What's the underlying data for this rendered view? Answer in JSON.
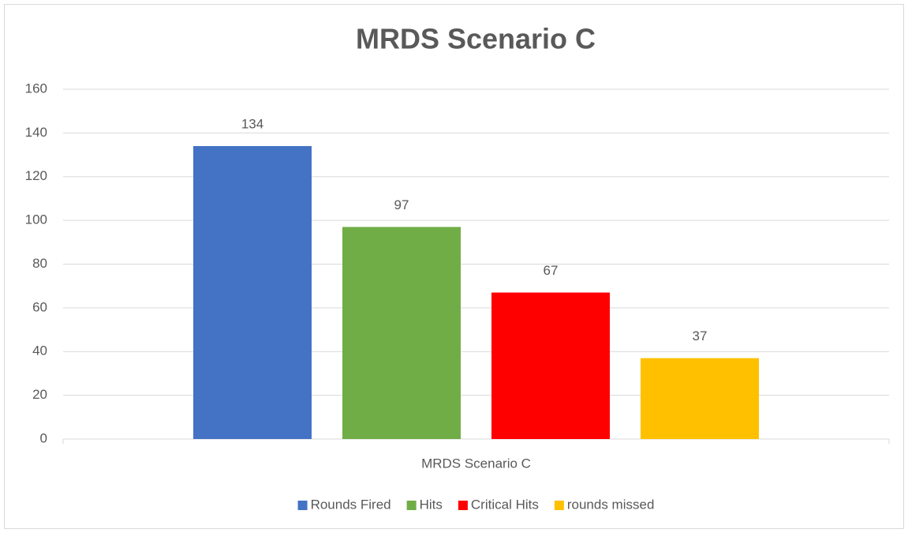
{
  "chart_data": {
    "type": "bar",
    "title": "MRDS Scenario C",
    "categories": [
      "MRDS Scenario C"
    ],
    "series": [
      {
        "name": "Rounds Fired",
        "color": "#4472c4",
        "values": [
          134
        ]
      },
      {
        "name": "Hits",
        "color": "#70ad47",
        "values": [
          97
        ]
      },
      {
        "name": "Critical Hits",
        "color": "#ff0000",
        "values": [
          67
        ]
      },
      {
        "name": "rounds missed",
        "color": "#ffc000",
        "values": [
          37
        ]
      }
    ],
    "ylim": [
      0,
      160
    ],
    "yticks": [
      0,
      20,
      40,
      60,
      80,
      100,
      120,
      140,
      160
    ],
    "grid": true,
    "legend": "bottom",
    "data_labels": true
  }
}
